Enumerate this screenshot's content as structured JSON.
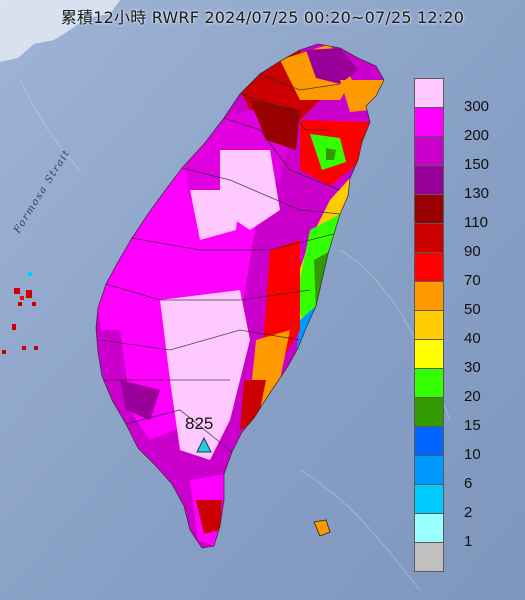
{
  "title": "累積12小時 RWRF 2024/07/25 00:20~07/25 12:20",
  "strait_label": "Formosa Strait",
  "peak": {
    "value": "825",
    "icon": "triangle-icon",
    "color": "#22d0d8"
  },
  "legend": {
    "labels": [
      "300",
      "200",
      "150",
      "130",
      "110",
      "90",
      "70",
      "50",
      "40",
      "30",
      "20",
      "15",
      "10",
      "6",
      "2",
      "1"
    ],
    "colors": [
      "#ffc8ff",
      "#ff00ff",
      "#cc00cc",
      "#990099",
      "#990000",
      "#cc0000",
      "#ff0000",
      "#ff9900",
      "#ffcc00",
      "#ffff00",
      "#33ff00",
      "#339900",
      "#0066ff",
      "#0099ff",
      "#00ccff",
      "#99ffff",
      "#c0c0c0"
    ]
  }
}
